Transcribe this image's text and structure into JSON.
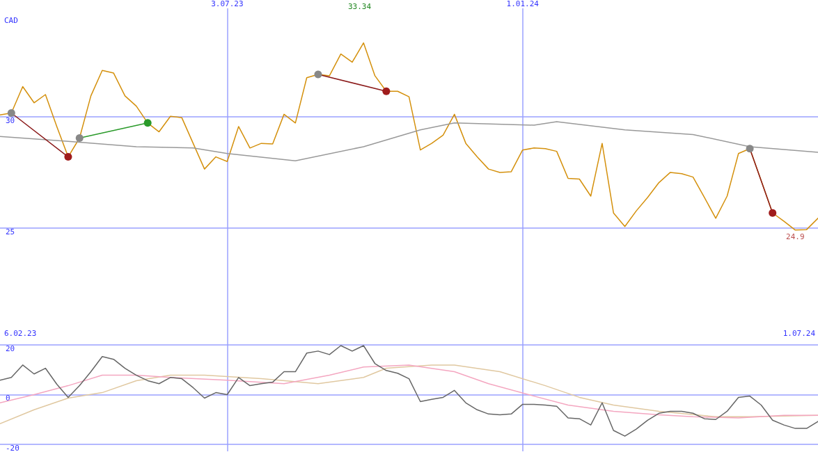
{
  "chart_data": [
    {
      "type": "line",
      "ylabel": "CAD",
      "grid": true,
      "xlim": [
        "2023-02-13",
        "2024-07-01"
      ],
      "xticks": [
        {
          "value": "2023-07-03",
          "label": "3.07.23"
        },
        {
          "value": "2024-01-01",
          "label": "1.01.24"
        }
      ],
      "ylim": [
        20,
        34.9
      ],
      "yticks": [
        25,
        30
      ],
      "x": [
        "2023-02-13",
        "2023-02-20",
        "2023-02-27",
        "2023-03-06",
        "2023-03-13",
        "2023-03-20",
        "2023-03-27",
        "2023-04-03",
        "2023-04-10",
        "2023-04-17",
        "2023-04-24",
        "2023-05-01",
        "2023-05-08",
        "2023-05-15",
        "2023-05-22",
        "2023-05-29",
        "2023-06-05",
        "2023-06-12",
        "2023-06-19",
        "2023-06-26",
        "2023-07-03",
        "2023-07-10",
        "2023-07-17",
        "2023-07-24",
        "2023-07-31",
        "2023-08-07",
        "2023-08-14",
        "2023-08-21",
        "2023-08-28",
        "2023-09-04",
        "2023-09-11",
        "2023-09-18",
        "2023-09-25",
        "2023-10-02",
        "2023-10-09",
        "2023-10-16",
        "2023-10-23",
        "2023-10-30",
        "2023-11-06",
        "2023-11-13",
        "2023-11-20",
        "2023-11-27",
        "2023-12-04",
        "2023-12-11",
        "2023-12-18",
        "2023-12-25",
        "2024-01-01",
        "2024-01-08",
        "2024-01-15",
        "2024-01-22",
        "2024-01-29",
        "2024-02-05",
        "2024-02-12",
        "2024-02-19",
        "2024-02-26",
        "2024-03-04",
        "2024-03-11",
        "2024-03-18",
        "2024-03-25",
        "2024-04-01",
        "2024-04-08",
        "2024-04-15",
        "2024-04-22",
        "2024-04-29",
        "2024-05-06",
        "2024-05-13",
        "2024-05-20",
        "2024-05-27",
        "2024-06-03",
        "2024-06-10",
        "2024-06-17",
        "2024-06-24",
        "2024-07-01"
      ],
      "series": [
        {
          "color": "#d4900c",
          "marker": "none",
          "values": [
            30.09,
            30.18,
            31.37,
            30.64,
            31.01,
            29.57,
            28.2,
            29.05,
            30.95,
            32.1,
            31.98,
            30.95,
            30.49,
            29.73,
            29.33,
            30.03,
            29.97,
            28.81,
            27.65,
            28.2,
            27.99,
            29.57,
            28.6,
            28.81,
            28.78,
            30.12,
            29.73,
            31.77,
            31.92,
            31.86,
            32.84,
            32.47,
            33.34,
            31.86,
            31.16,
            31.16,
            30.91,
            28.51,
            28.81,
            29.18,
            30.12,
            28.81,
            28.2,
            27.65,
            27.5,
            27.53,
            28.51,
            28.6,
            28.57,
            28.45,
            27.23,
            27.2,
            26.43,
            28.81,
            25.67,
            25.06,
            25.76,
            26.37,
            27.04,
            27.5,
            27.44,
            27.29,
            26.37,
            25.43,
            26.43,
            28.35,
            28.57,
            27.13,
            25.67,
            25.3,
            24.9,
            24.92,
            25.43
          ]
        },
        {
          "color": "#999999",
          "marker": "none",
          "x": [
            "2023-02-13",
            "2023-03-27",
            "2023-05-08",
            "2023-06-12",
            "2023-07-03",
            "2023-08-14",
            "2023-09-25",
            "2023-10-30",
            "2023-11-20",
            "2024-01-08",
            "2024-01-22",
            "2024-03-04",
            "2024-04-15",
            "2024-05-20",
            "2024-07-01"
          ],
          "values": [
            29.12,
            28.9,
            28.66,
            28.6,
            28.35,
            28.02,
            28.66,
            29.42,
            29.73,
            29.63,
            29.79,
            29.42,
            29.21,
            28.66,
            28.41
          ]
        },
        {
          "color": "#8b1a1a",
          "marker": "circle",
          "colors": [
            "#888888",
            "#a01c1c"
          ],
          "x": [
            "2023-02-20",
            "2023-03-27"
          ],
          "values": [
            30.18,
            28.2
          ]
        },
        {
          "color": "#2a9a2a",
          "marker": "circle",
          "colors": [
            "#888888",
            "#2a9a2a"
          ],
          "x": [
            "2023-04-03",
            "2023-05-15"
          ],
          "values": [
            29.05,
            29.73
          ]
        },
        {
          "color": "#8b1a1a",
          "marker": "circle",
          "colors": [
            "#888888",
            "#a01c1c"
          ],
          "x": [
            "2023-08-28",
            "2023-10-09"
          ],
          "values": [
            31.92,
            31.16
          ]
        },
        {
          "color": "#8b1a1a",
          "marker": "circle",
          "colors": [
            "#888888",
            "#a01c1c"
          ],
          "x": [
            "2024-05-20",
            "2024-06-03"
          ],
          "values": [
            28.57,
            25.67
          ]
        }
      ],
      "annotations": [
        "33.34",
        {
          "text": "24.9",
          "x": "2024-06-17",
          "y": 24.9
        },
        "6.02.23",
        "1.07.24"
      ]
    },
    {
      "type": "line",
      "grid": true,
      "tick_labels": "y",
      "xlim": [
        "2023-02-13",
        "2024-07-01"
      ],
      "xticks": [
        {
          "value": "2023-07-03",
          "label": null
        },
        {
          "value": "2024-01-01",
          "label": null
        }
      ],
      "ylim": [
        -22.8,
        22.5
      ],
      "yticks": [
        -20,
        0,
        20
      ],
      "x": [
        "2023-02-13",
        "2023-02-20",
        "2023-02-27",
        "2023-03-06",
        "2023-03-13",
        "2023-03-20",
        "2023-03-27",
        "2023-04-03",
        "2023-04-10",
        "2023-04-17",
        "2023-04-24",
        "2023-05-01",
        "2023-05-08",
        "2023-05-15",
        "2023-05-22",
        "2023-05-29",
        "2023-06-05",
        "2023-06-12",
        "2023-06-19",
        "2023-06-26",
        "2023-07-03",
        "2023-07-10",
        "2023-07-17",
        "2023-07-24",
        "2023-07-31",
        "2023-08-07",
        "2023-08-14",
        "2023-08-21",
        "2023-08-28",
        "2023-09-04",
        "2023-09-11",
        "2023-09-18",
        "2023-09-25",
        "2023-10-02",
        "2023-10-09",
        "2023-10-16",
        "2023-10-23",
        "2023-10-30",
        "2023-11-06",
        "2023-11-13",
        "2023-11-20",
        "2023-11-27",
        "2023-12-04",
        "2023-12-11",
        "2023-12-18",
        "2023-12-25",
        "2024-01-01",
        "2024-01-08",
        "2024-01-15",
        "2024-01-22",
        "2024-01-29",
        "2024-02-05",
        "2024-02-12",
        "2024-02-19",
        "2024-02-26",
        "2024-03-04",
        "2024-03-11",
        "2024-03-18",
        "2024-03-25",
        "2024-04-01",
        "2024-04-08",
        "2024-04-15",
        "2024-04-22",
        "2024-04-29",
        "2024-05-06",
        "2024-05-13",
        "2024-05-20",
        "2024-05-27",
        "2024-06-03",
        "2024-06-10",
        "2024-06-17",
        "2024-06-24",
        "2024-07-01"
      ],
      "series": [
        {
          "color": "#e0c8a0",
          "marker": "none",
          "x": [
            "2023-02-13",
            "2023-03-06",
            "2023-03-27",
            "2023-04-17",
            "2023-05-08",
            "2023-05-29",
            "2023-06-19",
            "2023-07-24",
            "2023-08-28",
            "2023-09-25",
            "2023-10-09",
            "2023-11-06",
            "2023-11-20",
            "2023-12-18",
            "2024-01-15",
            "2024-02-05",
            "2024-02-26",
            "2024-03-25",
            "2024-04-29",
            "2024-05-20",
            "2024-07-01"
          ],
          "values": [
            -11.7,
            -6.1,
            -1.4,
            0.8,
            5.6,
            7.8,
            7.8,
            6.4,
            4.4,
            6.9,
            10.6,
            11.9,
            11.9,
            9.2,
            3.6,
            -1.1,
            -4.2,
            -6.7,
            -8.9,
            -8.9,
            -8.3
          ]
        },
        {
          "color": "#f4a6c0",
          "marker": "none",
          "x": [
            "2023-02-13",
            "2023-03-06",
            "2023-03-27",
            "2023-04-17",
            "2023-05-08",
            "2023-05-29",
            "2023-07-03",
            "2023-08-07",
            "2023-09-04",
            "2023-09-25",
            "2023-10-23",
            "2023-11-20",
            "2023-12-11",
            "2024-01-08",
            "2024-01-29",
            "2024-02-26",
            "2024-03-25",
            "2024-04-15",
            "2024-05-13",
            "2024-06-10",
            "2024-07-01"
          ],
          "values": [
            -3.3,
            0,
            3.6,
            7.8,
            7.8,
            6.9,
            5.8,
            4.4,
            7.8,
            11.1,
            11.9,
            9.2,
            4.4,
            -0.6,
            -4.2,
            -6.7,
            -8.1,
            -8.9,
            -9.4,
            -8.3,
            -8.3
          ]
        },
        {
          "color": "#666666",
          "marker": "none",
          "values": [
            5.8,
            6.9,
            11.9,
            8.3,
            10.6,
            4.2,
            -1.1,
            3.6,
            9.2,
            15.3,
            14.2,
            10.6,
            7.8,
            5.6,
            4.4,
            6.9,
            6.4,
            2.8,
            -1.4,
            0.8,
            0,
            6.9,
            3.6,
            4.4,
            5,
            9.2,
            9.2,
            16.7,
            17.5,
            16.1,
            19.7,
            17.5,
            19.7,
            12.5,
            9.7,
            8.6,
            6.4,
            -2.8,
            -1.9,
            -1.1,
            1.7,
            -3.3,
            -6.1,
            -7.8,
            -8.1,
            -7.8,
            -3.9,
            -3.9,
            -4.2,
            -4.7,
            -9.4,
            -9.7,
            -12.2,
            -3.3,
            -14.4,
            -16.7,
            -13.9,
            -10.3,
            -7.5,
            -6.7,
            -6.7,
            -7.5,
            -9.7,
            -10,
            -6.7,
            -1.1,
            -0.6,
            -4.2,
            -10.3,
            -12.2,
            -13.6,
            -13.6,
            -10.8
          ]
        }
      ]
    }
  ]
}
